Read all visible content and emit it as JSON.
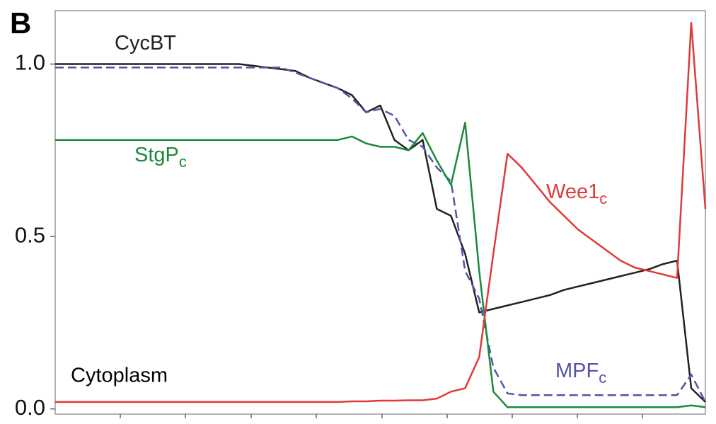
{
  "chart_data": {
    "type": "line",
    "panel_label": "B",
    "annotation": "Cytoplasm",
    "categories": [
      null,
      null,
      null,
      null,
      null,
      null,
      null,
      null,
      null,
      null,
      null,
      null,
      null,
      null,
      null,
      null,
      null,
      null,
      null,
      null,
      null,
      null,
      null,
      null,
      null,
      null,
      null,
      null,
      null,
      null,
      null,
      null,
      null,
      null,
      null,
      null,
      null,
      null,
      null,
      null,
      null,
      null,
      null,
      null,
      null,
      null,
      null
    ],
    "ylim": [
      -0.015,
      1.155
    ],
    "yticks": [
      {
        "value": 0,
        "label": "0.0"
      },
      0.5,
      {
        "value": 1,
        "label": "1.0"
      }
    ],
    "series": [
      {
        "name": "CycBT",
        "color": "#222222",
        "dash": false,
        "values": [
          1,
          1,
          1,
          1,
          1,
          1,
          1,
          1,
          1,
          1,
          1,
          1,
          1,
          1,
          0.995,
          0.99,
          0.985,
          0.98,
          0.96,
          0.945,
          0.93,
          0.91,
          0.86,
          0.88,
          0.78,
          0.75,
          0.78,
          0.58,
          0.56,
          0.45,
          0.28,
          0.29,
          0.3,
          0.31,
          0.32,
          0.33,
          0.345,
          0.355,
          0.365,
          0.375,
          0.385,
          0.395,
          0.405,
          0.42,
          0.43,
          0.06,
          0.02
        ]
      },
      {
        "name": "MPF",
        "subscript": "c",
        "color": "#5454a8",
        "dash": true,
        "values": [
          0.99,
          0.99,
          0.99,
          0.99,
          0.99,
          0.99,
          0.99,
          0.99,
          0.99,
          0.99,
          0.99,
          0.99,
          0.99,
          0.99,
          0.99,
          0.99,
          0.99,
          0.975,
          0.96,
          0.945,
          0.93,
          0.9,
          0.86,
          0.87,
          0.85,
          0.78,
          0.76,
          0.7,
          0.66,
          0.4,
          0.32,
          0.12,
          0.045,
          0.04,
          0.04,
          0.04,
          0.04,
          0.04,
          0.04,
          0.04,
          0.04,
          0.04,
          0.04,
          0.04,
          0.04,
          0.1,
          0.02
        ]
      },
      {
        "name": "StgP",
        "subscript": "c",
        "color": "#1a8a3a",
        "dash": false,
        "values": [
          0.78,
          0.78,
          0.78,
          0.78,
          0.78,
          0.78,
          0.78,
          0.78,
          0.78,
          0.78,
          0.78,
          0.78,
          0.78,
          0.78,
          0.78,
          0.78,
          0.78,
          0.78,
          0.78,
          0.78,
          0.78,
          0.79,
          0.77,
          0.76,
          0.76,
          0.75,
          0.8,
          0.72,
          0.65,
          0.83,
          0.4,
          0.05,
          0.005,
          0.005,
          0.005,
          0.005,
          0.005,
          0.005,
          0.005,
          0.005,
          0.005,
          0.005,
          0.005,
          0.005,
          0.005,
          0.01,
          0.005
        ]
      },
      {
        "name": "Wee1",
        "subscript": "c",
        "color": "#e03a3a",
        "dash": false,
        "values": [
          0.02,
          0.02,
          0.02,
          0.02,
          0.02,
          0.02,
          0.02,
          0.02,
          0.02,
          0.02,
          0.02,
          0.02,
          0.02,
          0.02,
          0.02,
          0.02,
          0.02,
          0.02,
          0.02,
          0.02,
          0.02,
          0.022,
          0.022,
          0.024,
          0.024,
          0.025,
          0.025,
          0.03,
          0.05,
          0.06,
          0.15,
          0.45,
          0.74,
          0.7,
          0.65,
          0.6,
          0.56,
          0.52,
          0.49,
          0.46,
          0.43,
          0.41,
          0.4,
          0.39,
          0.38,
          1.12,
          0.58
        ]
      }
    ]
  }
}
